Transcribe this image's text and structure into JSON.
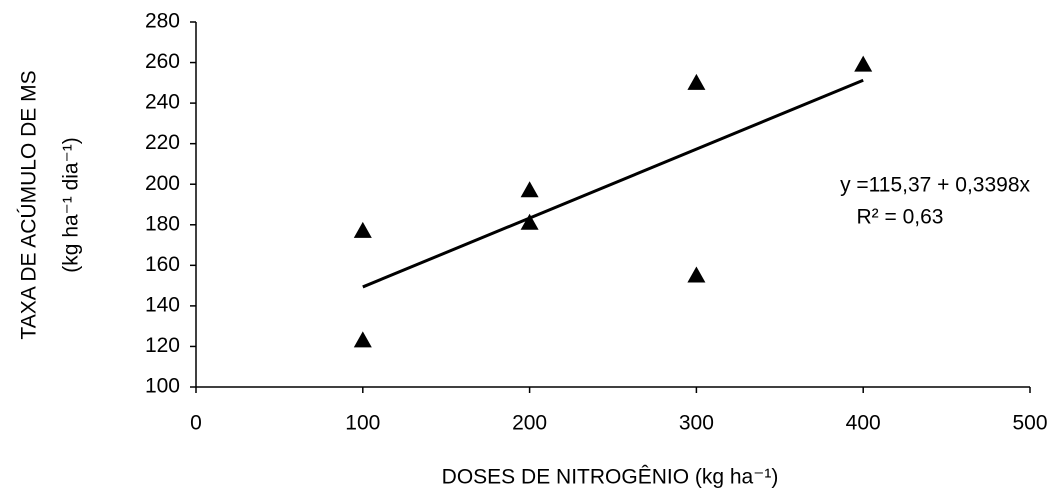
{
  "chart_data": {
    "type": "scatter",
    "xlabel": "DOSES DE NITROGÊNIO (kg ha⁻¹)",
    "ylabel": [
      "TAXA DE ACÚMULO DE MS",
      "(kg ha⁻¹ dia⁻¹)"
    ],
    "annotations": [
      "y =115,37 + 0,3398x",
      "R² = 0,63"
    ],
    "series": [
      {
        "type": "scatter",
        "color": "#000000",
        "x": [
          100,
          100,
          200,
          200,
          300,
          300,
          400
        ],
        "values": [
          177,
          123,
          197,
          181,
          250,
          155,
          259
        ]
      },
      {
        "type": "line",
        "color": "#000000",
        "x": [
          100,
          400
        ],
        "values": [
          149.35,
          251.29
        ]
      }
    ],
    "xlim": [
      0,
      500
    ],
    "xticks": [
      0,
      100,
      200,
      300,
      400,
      500
    ],
    "ylim": [
      100,
      280
    ],
    "yticks": [
      100,
      120,
      140,
      160,
      180,
      200,
      220,
      240,
      260,
      280
    ],
    "grid": false
  }
}
